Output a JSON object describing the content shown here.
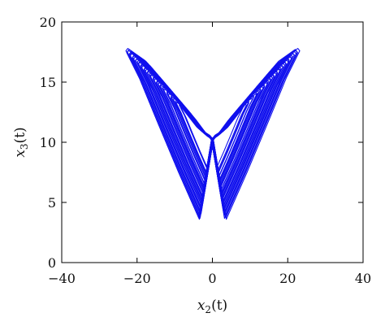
{
  "chart_data": {
    "type": "line",
    "title": "",
    "xlabel": {
      "var": "x",
      "sub": "2",
      "arg": "(t)"
    },
    "ylabel": {
      "var": "x",
      "sub": "3",
      "arg": "(t)"
    },
    "xlim": [
      -40,
      40
    ],
    "ylim": [
      0,
      20
    ],
    "x_ticks": [
      -40,
      -20,
      0,
      20,
      40
    ],
    "y_ticks": [
      0,
      5,
      10,
      15,
      20
    ],
    "x_tick_labels": [
      "−40",
      "−20",
      "0",
      "20",
      "40"
    ],
    "y_tick_labels": [
      "0",
      "5",
      "10",
      "15",
      "20"
    ],
    "grid": false,
    "legend": "none",
    "color": "#1010ee",
    "series": [
      {
        "description": "chaotic two-wing trajectory",
        "lobes": [
          {
            "x": [
              0,
              -3.5,
              -9,
              -14.5,
              -19.5,
              -23,
              -22.5,
              -18,
              -12,
              -7,
              -4,
              -2.5,
              -1,
              0
            ],
            "y": [
              10.2,
              3.6,
              7.5,
              11.6,
              15.4,
              17.6,
              17.8,
              16.8,
              14.6,
              12.5,
              11.3,
              10.9,
              10.6,
              10.2
            ]
          },
          {
            "x": [
              0,
              3.5,
              9,
              14.5,
              19.5,
              23,
              22.5,
              18,
              12,
              7,
              4,
              2.5,
              1,
              0
            ],
            "y": [
              10.2,
              3.6,
              7.5,
              11.6,
              15.4,
              17.6,
              17.8,
              16.8,
              14.6,
              12.5,
              11.3,
              10.9,
              10.6,
              10.2
            ]
          }
        ]
      }
    ]
  }
}
